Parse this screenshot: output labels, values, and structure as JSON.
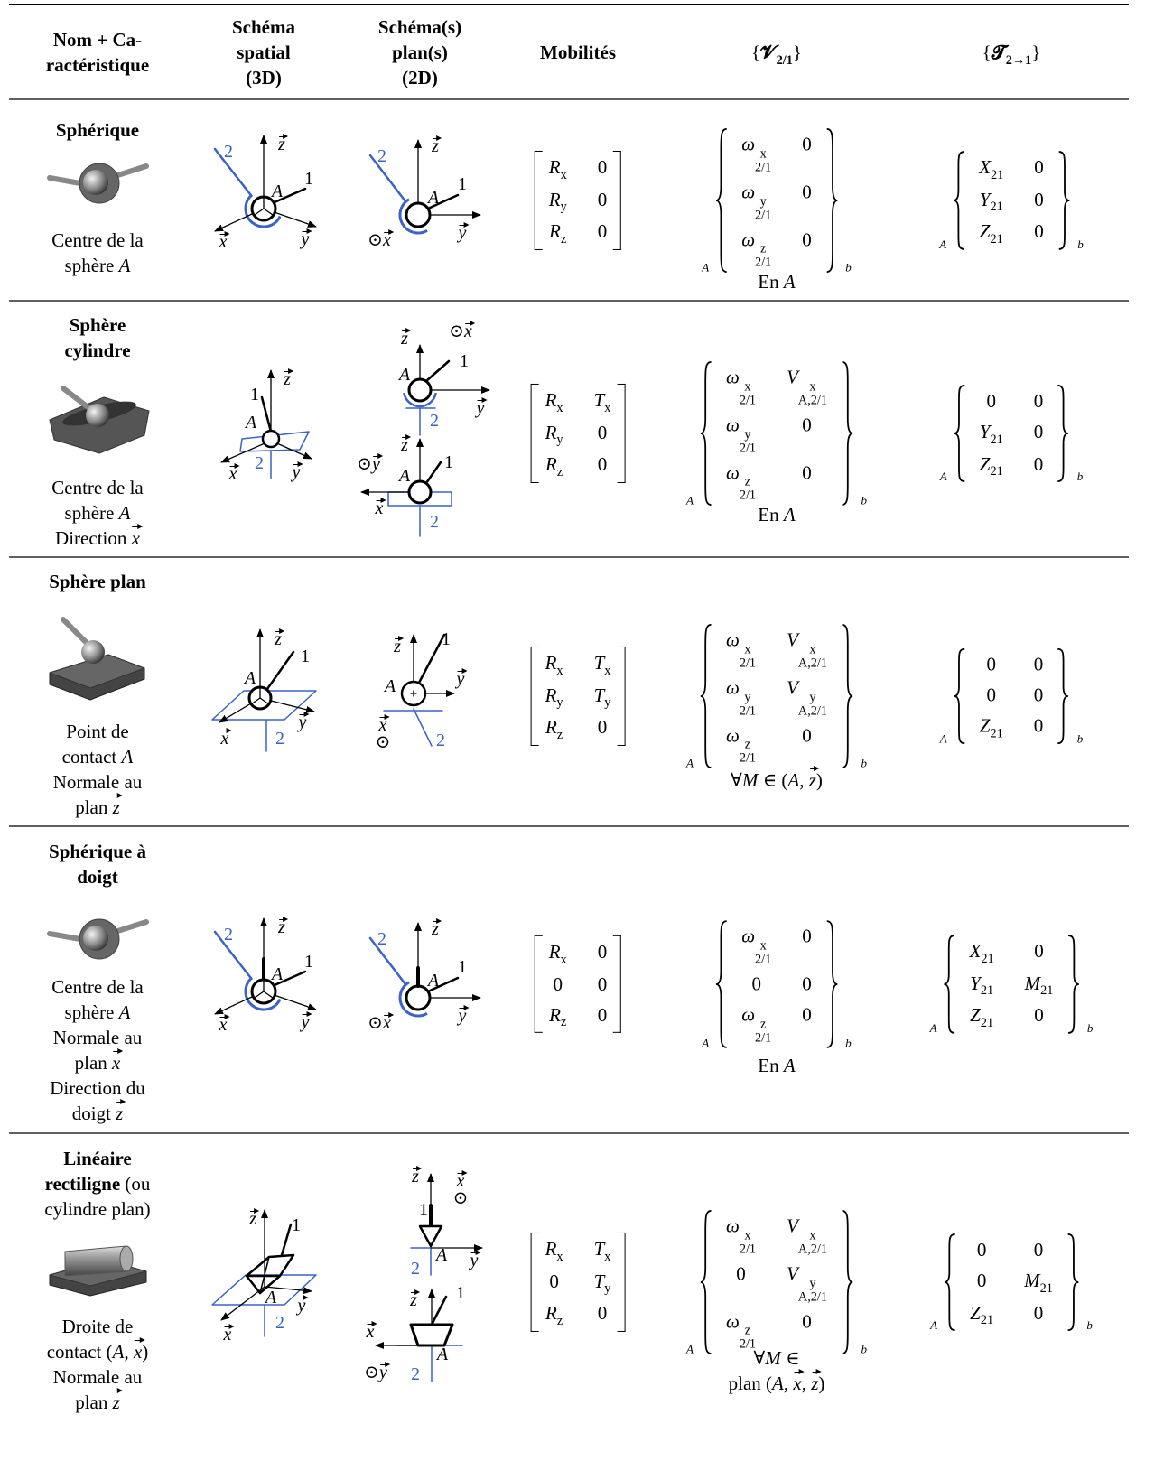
{
  "table": {
    "headers": [
      [
        [
          {
            "b": "Nom + Ca-"
          }
        ],
        [
          {
            "b": "ractéristique"
          }
        ]
      ],
      [
        [
          {
            "b": "Schéma"
          }
        ],
        [
          {
            "b": "spatial"
          }
        ],
        [
          {
            "b": "(3D)"
          }
        ]
      ],
      [
        [
          {
            "b": "Schéma(s)"
          }
        ],
        [
          {
            "b": "plan(s)"
          }
        ],
        [
          {
            "b": "(2D)"
          }
        ]
      ],
      [
        [
          {
            "b": "Mobilités"
          }
        ]
      ],
      [
        [
          {
            "pre": "{",
            "b": "𝓥",
            "sub": "2/1",
            "post": "}"
          }
        ]
      ],
      [
        [
          {
            "pre": "{",
            "b": "𝓣",
            "sub": "2→1",
            "post": "}"
          }
        ]
      ]
    ],
    "rows": [
      {
        "name": [
          [
            {
              "b": "Sphérique"
            }
          ]
        ],
        "characteristic": [
          [
            "Centre de la"
          ],
          [
            "sphère ",
            {
              "i": "A"
            }
          ]
        ],
        "schema_3d": [
          "2",
          {
            "v": "z"
          },
          {
            "i": "A"
          },
          "1",
          {
            "v": "x"
          },
          {
            "v": "y"
          }
        ],
        "schema_2d": [
          [
            "2",
            {
              "v": "z"
            },
            {
              "i": "A"
            },
            "1",
            {
              "pre": "⊙",
              "v": "x"
            },
            {
              "v": "y"
            }
          ]
        ],
        "mobilities": [
          [
            {
              "i": "R",
              "sub": "x"
            },
            "0"
          ],
          [
            {
              "i": "R",
              "sub": "y"
            },
            "0"
          ],
          [
            {
              "i": "R",
              "sub": "z"
            },
            "0"
          ]
        ],
        "velocity": {
          "point": "A",
          "basis": "b",
          "rows": [
            [
              {
                "i": "ω",
                "sup": "x",
                "sub": "2/1"
              },
              "0"
            ],
            [
              {
                "i": "ω",
                "sup": "y",
                "sub": "2/1"
              },
              "0"
            ],
            [
              {
                "i": "ω",
                "sup": "z",
                "sub": "2/1"
              },
              "0"
            ]
          ]
        },
        "action": {
          "point": "A",
          "basis": "b",
          "rows": [
            [
              {
                "i": "X",
                "sub": "21"
              },
              "0"
            ],
            [
              {
                "i": "Y",
                "sub": "21"
              },
              "0"
            ],
            [
              {
                "i": "Z",
                "sub": "21"
              },
              "0"
            ]
          ]
        },
        "note": [
          [
            "En ",
            {
              "i": "A"
            }
          ]
        ]
      },
      {
        "name": [
          [
            {
              "b": "Sphère"
            }
          ],
          [
            {
              "b": "cylindre"
            }
          ]
        ],
        "characteristic": [
          [
            "Centre de la"
          ],
          [
            "sphère ",
            {
              "i": "A"
            }
          ],
          [
            "Direction ",
            {
              "v": "x"
            }
          ]
        ],
        "schema_3d": [
          "1",
          {
            "v": "z"
          },
          {
            "i": "A"
          },
          {
            "v": "x"
          },
          "2",
          {
            "v": "y"
          }
        ],
        "schema_2d": [
          [
            {
              "v": "z"
            },
            {
              "pre": "⊙",
              "v": "x"
            },
            {
              "i": "A"
            },
            "1",
            {
              "v": "y"
            },
            "2"
          ],
          [
            {
              "pre": "⊙",
              "v": "y"
            },
            {
              "v": "z"
            },
            {
              "i": "A"
            },
            "1",
            {
              "v": "x"
            },
            "2"
          ]
        ],
        "mobilities": [
          [
            {
              "i": "R",
              "sub": "x"
            },
            {
              "i": "T",
              "sub": "x"
            }
          ],
          [
            {
              "i": "R",
              "sub": "y"
            },
            "0"
          ],
          [
            {
              "i": "R",
              "sub": "z"
            },
            "0"
          ]
        ],
        "velocity": {
          "point": "A",
          "basis": "b",
          "rows": [
            [
              {
                "i": "ω",
                "sup": "x",
                "sub": "2/1"
              },
              {
                "i": "V",
                "sup": "x",
                "sub": "A,2/1"
              }
            ],
            [
              {
                "i": "ω",
                "sup": "y",
                "sub": "2/1"
              },
              "0"
            ],
            [
              {
                "i": "ω",
                "sup": "z",
                "sub": "2/1"
              },
              "0"
            ]
          ]
        },
        "action": {
          "point": "A",
          "basis": "b",
          "rows": [
            [
              "0",
              "0"
            ],
            [
              {
                "i": "Y",
                "sub": "21"
              },
              "0"
            ],
            [
              {
                "i": "Z",
                "sub": "21"
              },
              "0"
            ]
          ]
        },
        "note": [
          [
            "En ",
            {
              "i": "A"
            }
          ]
        ]
      },
      {
        "name": [
          [
            {
              "b": "Sphère plan"
            }
          ]
        ],
        "characteristic": [
          [
            "Point de"
          ],
          [
            "contact ",
            {
              "i": "A"
            }
          ],
          [
            "Normale au"
          ],
          [
            "plan ",
            {
              "v": "z"
            }
          ]
        ],
        "schema_3d": [
          {
            "v": "z"
          },
          {
            "i": "A"
          },
          "1",
          {
            "v": "x"
          },
          "2",
          {
            "v": "y"
          }
        ],
        "schema_2d": [
          [
            {
              "v": "z"
            },
            "1",
            {
              "i": "A"
            },
            {
              "v": "y"
            },
            {
              "v": "x"
            },
            "⊙",
            "2"
          ]
        ],
        "mobilities": [
          [
            {
              "i": "R",
              "sub": "x"
            },
            {
              "i": "T",
              "sub": "x"
            }
          ],
          [
            {
              "i": "R",
              "sub": "y"
            },
            {
              "i": "T",
              "sub": "y"
            }
          ],
          [
            {
              "i": "R",
              "sub": "z"
            },
            "0"
          ]
        ],
        "velocity": {
          "point": "A",
          "basis": "b",
          "rows": [
            [
              {
                "i": "ω",
                "sup": "x",
                "sub": "2/1"
              },
              {
                "i": "V",
                "sup": "x",
                "sub": "A,2/1"
              }
            ],
            [
              {
                "i": "ω",
                "sup": "y",
                "sub": "2/1"
              },
              {
                "i": "V",
                "sup": "y",
                "sub": "A,2/1"
              }
            ],
            [
              {
                "i": "ω",
                "sup": "z",
                "sub": "2/1"
              },
              "0"
            ]
          ]
        },
        "action": {
          "point": "A",
          "basis": "b",
          "rows": [
            [
              "0",
              "0"
            ],
            [
              "0",
              "0"
            ],
            [
              {
                "i": "Z",
                "sub": "21"
              },
              "0"
            ]
          ]
        },
        "note": [
          [
            "∀",
            {
              "i": "M"
            },
            " ∈ (",
            {
              "i": "A"
            },
            ", ",
            {
              "v": "z"
            },
            ")"
          ]
        ]
      },
      {
        "name": [
          [
            {
              "b": "Sphérique à"
            }
          ],
          [
            {
              "b": "doigt"
            }
          ]
        ],
        "characteristic": [
          [
            "Centre de la"
          ],
          [
            "sphère ",
            {
              "i": "A"
            }
          ],
          [
            "Normale au"
          ],
          [
            "plan ",
            {
              "v": "x"
            }
          ],
          [
            "Direction du"
          ],
          [
            "doigt ",
            {
              "v": "z"
            }
          ]
        ],
        "schema_3d": [
          "2",
          {
            "v": "z"
          },
          {
            "i": "A"
          },
          "1",
          {
            "v": "x"
          },
          {
            "v": "y"
          }
        ],
        "schema_2d": [
          [
            "2",
            {
              "v": "z"
            },
            {
              "i": "A"
            },
            "1",
            {
              "pre": "⊙",
              "v": "x"
            },
            {
              "v": "y"
            }
          ]
        ],
        "mobilities": [
          [
            {
              "i": "R",
              "sub": "x"
            },
            "0"
          ],
          [
            "0",
            "0"
          ],
          [
            {
              "i": "R",
              "sub": "z"
            },
            "0"
          ]
        ],
        "velocity": {
          "point": "A",
          "basis": "b",
          "rows": [
            [
              {
                "i": "ω",
                "sup": "x",
                "sub": "2/1"
              },
              "0"
            ],
            [
              "0",
              "0"
            ],
            [
              {
                "i": "ω",
                "sup": "z",
                "sub": "2/1"
              },
              "0"
            ]
          ]
        },
        "action": {
          "point": "A",
          "basis": "b",
          "rows": [
            [
              {
                "i": "X",
                "sub": "21"
              },
              "0"
            ],
            [
              {
                "i": "Y",
                "sub": "21"
              },
              {
                "i": "M",
                "sub": "21"
              }
            ],
            [
              {
                "i": "Z",
                "sub": "21"
              },
              "0"
            ]
          ]
        },
        "note": [
          [
            "En ",
            {
              "i": "A"
            }
          ]
        ]
      },
      {
        "name": [
          [
            {
              "b": "Linéaire"
            }
          ],
          [
            {
              "b": "rectiligne"
            },
            " (ou"
          ],
          [
            "cylindre plan)"
          ]
        ],
        "characteristic": [
          [
            "Droite de"
          ],
          [
            "contact (",
            {
              "i": "A"
            },
            ", ",
            {
              "v": "x"
            },
            ")"
          ],
          [
            "Normale au"
          ],
          [
            "plan ",
            {
              "v": "z"
            }
          ]
        ],
        "schema_3d": [
          {
            "v": "z"
          },
          "1",
          {
            "i": "A"
          },
          {
            "v": "y"
          },
          {
            "v": "x"
          },
          "2"
        ],
        "schema_2d": [
          [
            {
              "v": "z"
            },
            {
              "v": "x"
            },
            "⊙",
            "1",
            "2",
            {
              "i": "A"
            },
            {
              "v": "y"
            }
          ],
          [
            {
              "v": "z"
            },
            "1",
            {
              "v": "x"
            },
            {
              "i": "A"
            },
            {
              "pre": "⊙",
              "v": "y"
            },
            "2"
          ]
        ],
        "mobilities": [
          [
            {
              "i": "R",
              "sub": "x"
            },
            {
              "i": "T",
              "sub": "x"
            }
          ],
          [
            "0",
            {
              "i": "T",
              "sub": "y"
            }
          ],
          [
            {
              "i": "R",
              "sub": "z"
            },
            "0"
          ]
        ],
        "velocity": {
          "point": "A",
          "basis": "b",
          "rows": [
            [
              {
                "i": "ω",
                "sup": "x",
                "sub": "2/1"
              },
              {
                "i": "V",
                "sup": "x",
                "sub": "A,2/1"
              }
            ],
            [
              "0",
              {
                "i": "V",
                "sup": "y",
                "sub": "A,2/1"
              }
            ],
            [
              {
                "i": "ω",
                "sup": "z",
                "sub": "2/1"
              },
              "0"
            ]
          ]
        },
        "action": {
          "point": "A",
          "basis": "b",
          "rows": [
            [
              "0",
              "0"
            ],
            [
              "0",
              {
                "i": "M",
                "sub": "21"
              }
            ],
            [
              {
                "i": "Z",
                "sub": "21"
              },
              "0"
            ]
          ]
        },
        "note": [
          [
            "∀",
            {
              "i": "M"
            },
            " ∈"
          ],
          [
            "plan (",
            {
              "i": "A"
            },
            ", ",
            {
              "v": "x"
            },
            ", ",
            {
              "v": "z"
            },
            ")"
          ]
        ]
      }
    ]
  }
}
